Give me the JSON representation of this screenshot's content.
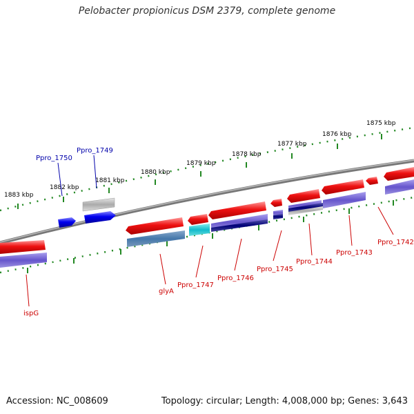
{
  "title": "Pelobacter propionicus DSM 2379, complete genome",
  "footer": {
    "accession": "Accession: NC_008609",
    "summary": "Topology: circular; Length: 4,008,000 bp; Genes: 3,643"
  },
  "colors": {
    "gene_red": "#ee1111",
    "gene_blue": "#0000ee",
    "gene_gray": "#aaaaaa",
    "cds_purple": "#6655cc",
    "cds_navy": "#000077",
    "cds_steel": "#4477aa",
    "cds_cyan": "#11bbcc",
    "label_red": "#cc0000",
    "label_blue": "#0000aa",
    "tick_green": "#006600"
  },
  "ruler": {
    "outer_ticks": [
      "1883 kbp",
      "1882 kbp",
      "1881 kbp",
      "1880 kbp",
      "1879 kbp",
      "1878 kbp",
      "1877 kbp",
      "1876 kbp",
      "1875 kbp"
    ]
  },
  "gene_labels": {
    "above": [
      "Ppro_1750",
      "Ppro_1749"
    ],
    "below": [
      "ispG",
      "glyA",
      "Ppro_1747",
      "Ppro_1746",
      "Ppro_1745",
      "Ppro_1744",
      "Ppro_1743",
      "Ppro_1742"
    ]
  }
}
